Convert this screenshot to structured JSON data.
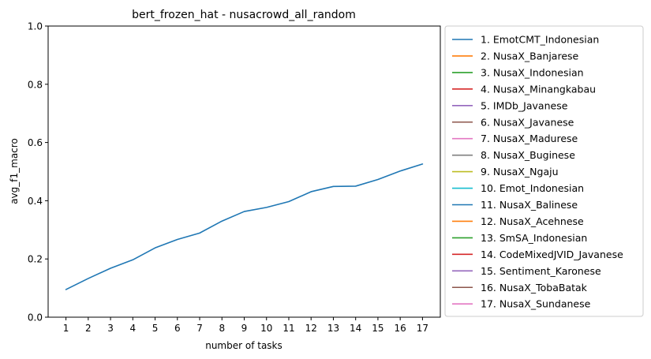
{
  "chart_data": {
    "type": "line",
    "title": "bert_frozen_hat - nusacrowd_all_random",
    "xlabel": "number of tasks",
    "ylabel": "avg_f1_macro",
    "x": [
      1,
      2,
      3,
      4,
      5,
      6,
      7,
      8,
      9,
      10,
      11,
      12,
      13,
      14,
      15,
      16,
      17
    ],
    "xticks": [
      "1",
      "2",
      "3",
      "4",
      "5",
      "6",
      "7",
      "8",
      "9",
      "10",
      "11",
      "12",
      "13",
      "14",
      "15",
      "16",
      "17"
    ],
    "ylim": [
      0,
      1
    ],
    "yticks": [
      "0.0",
      "0.2",
      "0.4",
      "0.6",
      "0.8",
      "1.0"
    ],
    "grid": false,
    "legend_position": "outside-right",
    "series": [
      {
        "name": "1. EmotCMT_Indonesian",
        "color": "#1f77b4",
        "values": [
          0.095,
          0.133,
          0.168,
          0.197,
          0.238,
          0.267,
          0.289,
          0.33,
          0.363,
          0.377,
          0.397,
          0.431,
          0.449,
          0.45,
          0.473,
          0.502,
          0.526
        ]
      }
    ],
    "legend": [
      {
        "label": "1. EmotCMT_Indonesian",
        "color": "#1f77b4"
      },
      {
        "label": "2. NusaX_Banjarese",
        "color": "#ff7f0e"
      },
      {
        "label": "3. NusaX_Indonesian",
        "color": "#2ca02c"
      },
      {
        "label": "4. NusaX_Minangkabau",
        "color": "#d62728"
      },
      {
        "label": "5. IMDb_Javanese",
        "color": "#9467bd"
      },
      {
        "label": "6. NusaX_Javanese",
        "color": "#8c564b"
      },
      {
        "label": "7. NusaX_Madurese",
        "color": "#e377c2"
      },
      {
        "label": "8. NusaX_Buginese",
        "color": "#7f7f7f"
      },
      {
        "label": "9. NusaX_Ngaju",
        "color": "#bcbd22"
      },
      {
        "label": "10. Emot_Indonesian",
        "color": "#17becf"
      },
      {
        "label": "11. NusaX_Balinese",
        "color": "#1f77b4"
      },
      {
        "label": "12. NusaX_Acehnese",
        "color": "#ff7f0e"
      },
      {
        "label": "13. SmSA_Indonesian",
        "color": "#2ca02c"
      },
      {
        "label": "14. CodeMixedJVID_Javanese",
        "color": "#d62728"
      },
      {
        "label": "15. Sentiment_Karonese",
        "color": "#9467bd"
      },
      {
        "label": "16. NusaX_TobaBatak",
        "color": "#8c564b"
      },
      {
        "label": "17. NusaX_Sundanese",
        "color": "#e377c2"
      }
    ]
  }
}
